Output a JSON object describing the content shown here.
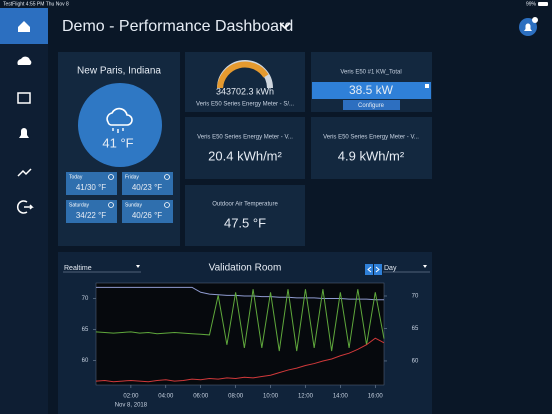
{
  "status_bar": {
    "left": "TestFlight  4:55 PM  Thu Nov 8",
    "battery": "99%"
  },
  "header": {
    "title": "Demo - Performance Dashboard"
  },
  "weather": {
    "location": "New Paris, Indiana",
    "temperature": "41 °F",
    "forecast": [
      {
        "day": "Today",
        "temps": "41/30 °F"
      },
      {
        "day": "Friday",
        "temps": "40/23 °F"
      },
      {
        "day": "Saturday",
        "temps": "34/22 °F"
      },
      {
        "day": "Sunday",
        "temps": "40/26 °F"
      }
    ]
  },
  "gauge_tile": {
    "value": "343702.3 kWh",
    "label": "Veris E50 Series Energy Meter - S/..."
  },
  "kw_tile": {
    "title": "Veris E50 #1 KW_Total",
    "value": "38.5 kW",
    "button": "Configure"
  },
  "tiles": [
    {
      "label": "Veris E50 Series Energy Meter - V...",
      "value": "20.4 kWh/m²"
    },
    {
      "label": "Veris E50 Series Energy Meter - V...",
      "value": "4.9 kWh/m²"
    },
    {
      "label": "Outdoor Air Temperature",
      "value": "47.5 °F"
    }
  ],
  "chart_panel": {
    "range_select": "Realtime",
    "period_select": "Day"
  },
  "chart_data": {
    "type": "line",
    "title": "Validation Room",
    "x": [
      0,
      0.5,
      1,
      1.5,
      2,
      2.5,
      3,
      3.5,
      4,
      4.5,
      5,
      5.5,
      6,
      6.5,
      7,
      7.5,
      8,
      8.5,
      9,
      9.5,
      10,
      10.5,
      11,
      11.5,
      12,
      12.5,
      13,
      13.5,
      14,
      14.5,
      15,
      15.5,
      16,
      16.5
    ],
    "xlim": [
      0,
      16.5
    ],
    "xticks": [
      {
        "value": 2,
        "label": "02:00"
      },
      {
        "value": 4,
        "label": "04:00"
      },
      {
        "value": 6,
        "label": "06:00"
      },
      {
        "value": 8,
        "label": "08:00"
      },
      {
        "value": 10,
        "label": "10:00"
      },
      {
        "value": 12,
        "label": "12:00"
      },
      {
        "value": 14,
        "label": "14:00"
      },
      {
        "value": 16,
        "label": "16:00"
      }
    ],
    "x_date": "Nov 8, 2018",
    "ylim": [
      56,
      72.5
    ],
    "yticks": [
      60,
      65,
      70
    ],
    "y2lim": [
      56.3,
      72
    ],
    "y2ticks": [
      60,
      65,
      70
    ],
    "series": [
      {
        "color": "#8f9bd0",
        "values": [
          71.8,
          71.8,
          71.8,
          71.8,
          71.8,
          71.8,
          71.8,
          71.8,
          71.8,
          71.8,
          71.8,
          71.8,
          71.0,
          70.7,
          70.6,
          70.5,
          70.5,
          70.4,
          70.4,
          70.3,
          70.3,
          70.2,
          70.2,
          70.1,
          70.1,
          70.1,
          70.0,
          70.0,
          70.0,
          69.9,
          69.9,
          69.9,
          69.8,
          69.8
        ]
      },
      {
        "color": "#5fa83c",
        "values": [
          64.6,
          64.5,
          64.4,
          64.5,
          64.6,
          64.4,
          64.5,
          64.3,
          64.4,
          64.5,
          64.4,
          64.3,
          64.2,
          64.1,
          70.5,
          62.5,
          71,
          62,
          71.5,
          62,
          71,
          61.5,
          71.5,
          61.5,
          71.5,
          62,
          71.5,
          61.5,
          71,
          62,
          71.5,
          62.5,
          71,
          63.5
        ]
      },
      {
        "color": "#d0393a",
        "axis": "y2",
        "values": [
          56.9,
          57.0,
          56.8,
          56.9,
          57.0,
          56.9,
          56.8,
          57.0,
          57.1,
          56.9,
          57.0,
          57.2,
          57.1,
          57.3,
          57.2,
          57.4,
          57.3,
          57.5,
          57.4,
          57.6,
          57.8,
          58.2,
          58.6,
          58.9,
          59.3,
          59.6,
          60.0,
          60.3,
          60.8,
          61.2,
          61.8,
          62.5,
          63.5,
          62.8
        ]
      }
    ]
  }
}
